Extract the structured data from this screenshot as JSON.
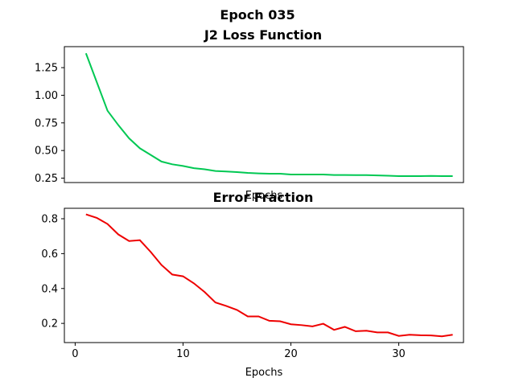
{
  "figure": {
    "suptitle": "Epoch 035"
  },
  "chart_data": [
    {
      "type": "line",
      "title": "J2 Loss Function",
      "xlabel": "Epochs",
      "ylabel": "",
      "xlim": [
        -1,
        36
      ],
      "ylim": [
        0.21,
        1.44
      ],
      "yticks": [
        0.25,
        0.5,
        0.75,
        1.0,
        1.25
      ],
      "ytick_labels": [
        "0.25",
        "0.50",
        "0.75",
        "1.00",
        "1.25"
      ],
      "xticks": [],
      "color": "#00c853",
      "x": [
        1,
        2,
        3,
        4,
        5,
        6,
        7,
        8,
        9,
        10,
        11,
        12,
        13,
        14,
        15,
        16,
        17,
        18,
        19,
        20,
        21,
        22,
        23,
        24,
        25,
        26,
        27,
        28,
        29,
        30,
        31,
        32,
        33,
        34,
        35
      ],
      "values": [
        1.38,
        1.12,
        0.86,
        0.73,
        0.61,
        0.52,
        0.46,
        0.4,
        0.375,
        0.36,
        0.34,
        0.33,
        0.315,
        0.31,
        0.305,
        0.297,
        0.293,
        0.29,
        0.29,
        0.283,
        0.283,
        0.283,
        0.283,
        0.278,
        0.278,
        0.277,
        0.277,
        0.275,
        0.272,
        0.268,
        0.268,
        0.268,
        0.27,
        0.268,
        0.268
      ]
    },
    {
      "type": "line",
      "title": "Error Fraction",
      "xlabel": "Epochs",
      "ylabel": "",
      "xlim": [
        -1,
        36
      ],
      "ylim": [
        0.09,
        0.86
      ],
      "yticks": [
        0.2,
        0.4,
        0.6,
        0.8
      ],
      "ytick_labels": [
        "0.2",
        "0.4",
        "0.6",
        "0.8"
      ],
      "xticks": [
        0,
        10,
        20,
        30
      ],
      "xtick_labels": [
        "0",
        "10",
        "20",
        "30"
      ],
      "color": "#ee0000",
      "x": [
        1,
        2,
        3,
        4,
        5,
        6,
        7,
        8,
        9,
        10,
        11,
        12,
        13,
        14,
        15,
        16,
        17,
        18,
        19,
        20,
        21,
        22,
        23,
        24,
        25,
        26,
        27,
        28,
        29,
        30,
        31,
        32,
        33,
        34,
        35
      ],
      "values": [
        0.825,
        0.805,
        0.77,
        0.71,
        0.672,
        0.677,
        0.61,
        0.535,
        0.48,
        0.47,
        0.43,
        0.38,
        0.32,
        0.3,
        0.277,
        0.24,
        0.24,
        0.215,
        0.212,
        0.195,
        0.19,
        0.183,
        0.198,
        0.163,
        0.18,
        0.155,
        0.158,
        0.148,
        0.148,
        0.128,
        0.135,
        0.132,
        0.131,
        0.126,
        0.135
      ]
    }
  ]
}
